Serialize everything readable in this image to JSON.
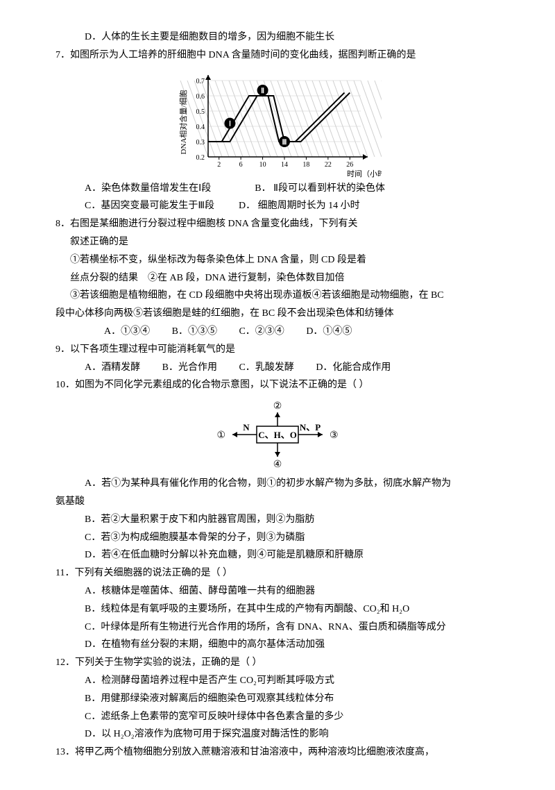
{
  "q6d": "D．人体的生长主要是细胞数目的增多，因为细胞不能生长",
  "q7": {
    "stem": "7．如图所示为人工培养的肝细胞中 DNA 含量随时间的变化曲线，据图判断正确的是",
    "chart": {
      "type": "line",
      "x_ticks": [
        "2",
        "6",
        "10",
        "14",
        "18",
        "22",
        "26"
      ],
      "y_ticks": [
        "0.2",
        "0.3",
        "0.4",
        "0.5",
        "0.6",
        "0.7"
      ],
      "y_label": "DNA相对含量/细胞",
      "x_label": "时间（小时）",
      "markers": [
        "Ⅰ",
        "Ⅱ",
        "Ⅲ"
      ],
      "line_color": "#000000",
      "bg_color": "#ffffff",
      "grid_color": "#cccccc",
      "hatch_color": "#d0d0d0",
      "series1": [
        [
          0,
          0.3
        ],
        [
          4,
          0.3
        ],
        [
          9,
          0.6
        ],
        [
          12,
          0.6
        ],
        [
          14,
          0.3
        ],
        [
          17,
          0.3
        ],
        [
          26,
          0.62
        ]
      ],
      "series2": [
        [
          0,
          0.3
        ],
        [
          2.5,
          0.3
        ],
        [
          7.5,
          0.6
        ],
        [
          11,
          0.6
        ],
        [
          13,
          0.3
        ],
        [
          16,
          0.3
        ],
        [
          25,
          0.62
        ]
      ]
    },
    "optA": "A．染色体数量倍增发生在Ⅰ段",
    "optB": "B．  Ⅱ段可以看到杆状的染色体",
    "optC": "C．基因突变最可能发生于Ⅲ段",
    "optD": "D．  细胞周期时长为 14 小时"
  },
  "q8": {
    "stem": "8．右图是某细胞进行分裂过程中细胞核 DNA 含量变化曲线，下列有关",
    "stem2": "叙述正确的是",
    "l1": "①若横坐标不变，纵坐标改为每条染色体上 DNA 含量，则 CD 段是着",
    "l2": "丝点分裂的结果　②在 AB 段，DNA 进行复制，染色体数目加倍",
    "l3": "③若该细胞是植物细胞，在 CD 段细胞中央将出现赤道板④若该细胞是动物细胞，在 BC",
    "l4": "段中心体移向两极⑤若该细胞是蛙的红细胞，在 BC 段不会出现染色体和纺锤体",
    "optA": "A．①③④",
    "optB": "B．①③⑤",
    "optC": "C．②③④",
    "optD": "D．①④⑤"
  },
  "q9": {
    "stem": "9．以下各项生理过程中可能消耗氧气的是",
    "optA": "A．酒精发酵",
    "optB": "B．光合作用",
    "optC": "C．乳酸发酵",
    "optD": "D．化能合成作用"
  },
  "q10": {
    "stem": "10．如图为不同化学元素组成的化合物示意图，以下说法不正确的是（  ）",
    "diagram": {
      "center": "C、H、O",
      "left": "N",
      "right": "N、P",
      "labels": [
        "①",
        "②",
        "③",
        "④"
      ]
    },
    "optA": "A．若①为某种具有催化作用的化合物，则①的初步水解产物为多肽，彻底水解产物为",
    "optA2": "氨基酸",
    "optB": "B．若②大量积累于皮下和内脏器官周围，则②为脂肪",
    "optC": "C．若③为构成细胞膜基本骨架的分子，则③为磷脂",
    "optD": "D．若④在低血糖时分解以补充血糖，则④可能是肌糖原和肝糖原"
  },
  "q11": {
    "stem": "11．下列有关细胞器的说法正确的是（  ）",
    "optA": "A．核糖体是噬菌体、细菌、酵母菌唯一共有的细胞器",
    "optB": "B．线粒体是有氧呼吸的主要场所，在其中生成的产物有丙酮酸、CO₂和 H₂O",
    "optC": "C．叶绿体是所有生物进行光合作用的场所，含有 DNA、RNA、蛋白质和磷脂等成分",
    "optD": "D．在植物有丝分裂的末期，细胞中的高尔基体活动加强"
  },
  "q12": {
    "stem": "12．下列关于生物学实验的说法，正确的是（  ）",
    "optA": "A．检测酵母菌培养过程中是否产生 CO₂可判断其呼吸方式",
    "optB": "B．用健那绿染液对解离后的细胞染色可观察其线粒体分布",
    "optC": "C．滤纸条上色素带的宽窄可反映叶绿体中各色素含量的多少",
    "optD": "D．以 H₂O₂溶液作为底物可用于探究温度对酶活性的影响"
  },
  "q13": {
    "stem": "13．将甲乙两个植物细胞分别放入蔗糖溶液和甘油溶液中，两种溶液均比细胞液浓度高，"
  }
}
